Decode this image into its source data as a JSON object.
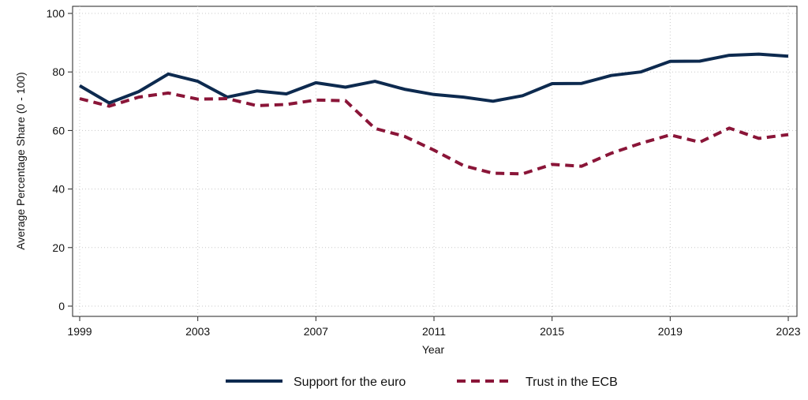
{
  "chart_data": {
    "type": "line",
    "title": "",
    "xlabel": "Year",
    "ylabel": "Average Percentage Share (0 - 100)",
    "xlim": [
      1999,
      2023
    ],
    "ylim": [
      0,
      100
    ],
    "x_ticks": [
      "1999",
      "2003",
      "2007",
      "2011",
      "2015",
      "2019",
      "2023"
    ],
    "y_ticks": [
      "0",
      "20",
      "40",
      "60",
      "80",
      "100"
    ],
    "grid": true,
    "legend_position": "bottom",
    "x": [
      1999,
      2000,
      2001,
      2002,
      2003,
      2004,
      2005,
      2006,
      2007,
      2008,
      2009,
      2010,
      2011,
      2012,
      2013,
      2014,
      2015,
      2016,
      2017,
      2018,
      2019,
      2020,
      2021,
      2022,
      2023
    ],
    "series": [
      {
        "name": "Support for the euro",
        "color": "#0d2a4f",
        "style": "solid",
        "values": [
          75.3,
          69.4,
          73.3,
          79.3,
          76.8,
          71.4,
          73.5,
          72.5,
          76.3,
          74.8,
          76.8,
          74.1,
          72.3,
          71.4,
          70.0,
          71.9,
          76.0,
          76.1,
          78.8,
          80.0,
          83.6,
          83.7,
          85.7,
          86.1,
          85.4
        ]
      },
      {
        "name": "Trust in the ECB",
        "color": "#8a1538",
        "style": "dashed",
        "values": [
          70.9,
          68.3,
          71.4,
          72.8,
          70.7,
          70.9,
          68.5,
          68.9,
          70.4,
          70.2,
          60.7,
          58.0,
          53.3,
          48.0,
          45.4,
          45.2,
          48.4,
          47.8,
          52.2,
          55.6,
          58.5,
          56.0,
          60.8,
          57.3,
          58.6
        ]
      }
    ]
  }
}
